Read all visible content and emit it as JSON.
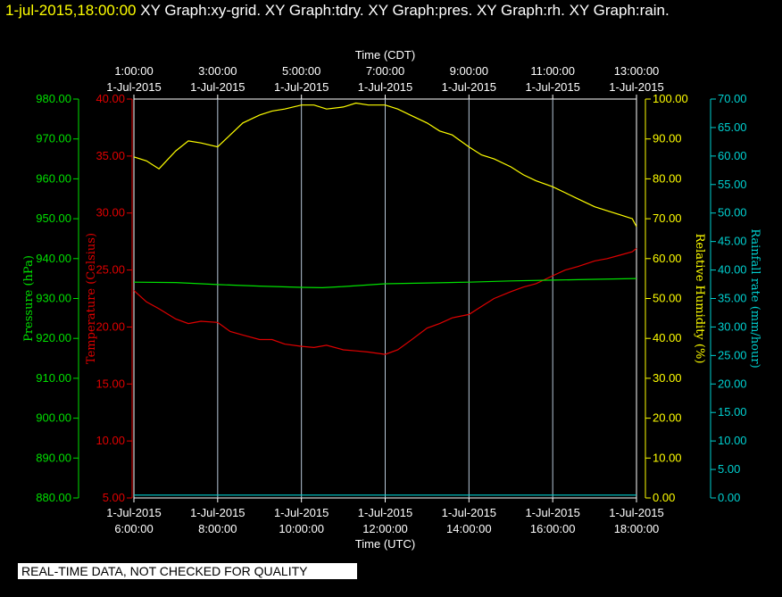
{
  "header": {
    "date_text": "1-jul-2015,18:00:00",
    "graphs_text": "XY Graph:xy-grid.  XY Graph:tdry.  XY Graph:pres.  XY Graph:rh.  XY Graph:rain."
  },
  "footer": {
    "note": "REAL-TIME DATA, NOT CHECKED FOR QUALITY"
  },
  "chart_data": {
    "type": "line",
    "x_top_label": "Time (CDT)",
    "x_bottom_label": "Time (UTC)",
    "x_top_ticks": [
      {
        "time": "1:00:00",
        "date": "1-Jul-2015"
      },
      {
        "time": "3:00:00",
        "date": "1-Jul-2015"
      },
      {
        "time": "5:00:00",
        "date": "1-Jul-2015"
      },
      {
        "time": "7:00:00",
        "date": "1-Jul-2015"
      },
      {
        "time": "9:00:00",
        "date": "1-Jul-2015"
      },
      {
        "time": "11:00:00",
        "date": "1-Jul-2015"
      },
      {
        "time": "13:00:00",
        "date": "1-Jul-2015"
      }
    ],
    "x_bottom_ticks": [
      {
        "date": "1-Jul-2015",
        "time": "6:00:00"
      },
      {
        "date": "1-Jul-2015",
        "time": "8:00:00"
      },
      {
        "date": "1-Jul-2015",
        "time": "10:00:00"
      },
      {
        "date": "1-Jul-2015",
        "time": "12:00:00"
      },
      {
        "date": "1-Jul-2015",
        "time": "14:00:00"
      },
      {
        "date": "1-Jul-2015",
        "time": "16:00:00"
      },
      {
        "date": "1-Jul-2015",
        "time": "18:00:00"
      }
    ],
    "x_range_utc_hours": [
      6,
      18
    ],
    "grid": true,
    "axes": {
      "pressure": {
        "label": "Pressure (hPa)",
        "color": "#00e000",
        "min": 880,
        "max": 980,
        "ticks": [
          "880.00",
          "890.00",
          "900.00",
          "910.00",
          "920.00",
          "930.00",
          "940.00",
          "950.00",
          "960.00",
          "970.00",
          "980.00"
        ]
      },
      "temperature": {
        "label": "Temperature (Celsius)",
        "color": "#e00000",
        "min": 5,
        "max": 40,
        "ticks": [
          "5.00",
          "10.00",
          "15.00",
          "20.00",
          "25.00",
          "30.00",
          "35.00",
          "40.00"
        ]
      },
      "rh": {
        "label": "Relative Humidity (%)",
        "color": "#ffff00",
        "min": 0,
        "max": 100,
        "ticks": [
          "0.00",
          "10.00",
          "20.00",
          "30.00",
          "40.00",
          "50.00",
          "60.00",
          "70.00",
          "80.00",
          "90.00",
          "100.00"
        ]
      },
      "rain": {
        "label": "Rainfall rate (mm/hour)",
        "color": "#00d0d0",
        "min": 0,
        "max": 70,
        "ticks": [
          "0.00",
          "5.00",
          "10.00",
          "15.00",
          "20.00",
          "25.00",
          "30.00",
          "35.00",
          "40.00",
          "45.00",
          "50.00",
          "55.00",
          "60.00",
          "65.00",
          "70.00"
        ]
      }
    },
    "series": [
      {
        "axis": "rh",
        "color": "#ffff00",
        "x": [
          6.0,
          6.3,
          6.6,
          7.0,
          7.3,
          7.6,
          8.0,
          8.3,
          8.6,
          9.0,
          9.3,
          9.6,
          10.0,
          10.3,
          10.6,
          11.0,
          11.3,
          11.6,
          12.0,
          12.3,
          12.6,
          13.0,
          13.3,
          13.6,
          14.0,
          14.3,
          14.6,
          15.0,
          15.3,
          15.6,
          16.0,
          16.3,
          16.6,
          17.0,
          17.3,
          17.6,
          17.9,
          18.0
        ],
        "y": [
          85.5,
          84.5,
          82.5,
          87,
          89.5,
          89,
          88,
          91,
          94,
          96,
          97,
          97.5,
          98.5,
          98.5,
          97.5,
          98,
          99,
          98.5,
          98.5,
          97.5,
          96,
          94,
          92,
          91,
          88,
          86,
          85,
          83,
          81,
          79.5,
          78,
          76.5,
          75,
          73,
          72,
          71,
          70,
          68
        ]
      },
      {
        "axis": "temperature",
        "color": "#e00000",
        "x": [
          6.0,
          6.3,
          6.6,
          7.0,
          7.3,
          7.6,
          8.0,
          8.3,
          8.6,
          9.0,
          9.3,
          9.6,
          10.0,
          10.3,
          10.6,
          11.0,
          11.3,
          11.6,
          12.0,
          12.3,
          12.6,
          13.0,
          13.3,
          13.6,
          14.0,
          14.3,
          14.6,
          15.0,
          15.3,
          15.6,
          16.0,
          16.3,
          16.6,
          17.0,
          17.3,
          17.6,
          17.9,
          18.0
        ],
        "y": [
          23.2,
          22.2,
          21.6,
          20.7,
          20.3,
          20.5,
          20.4,
          19.6,
          19.3,
          18.9,
          18.9,
          18.5,
          18.3,
          18.2,
          18.4,
          18.0,
          17.9,
          17.8,
          17.6,
          18.0,
          18.8,
          19.9,
          20.3,
          20.8,
          21.1,
          21.8,
          22.5,
          23.1,
          23.5,
          23.8,
          24.5,
          25.0,
          25.3,
          25.8,
          26.0,
          26.3,
          26.6,
          26.9
        ]
      },
      {
        "axis": "pressure",
        "color": "#00e000",
        "x": [
          6.0,
          7.0,
          8.0,
          9.0,
          10.0,
          10.5,
          11.0,
          12.0,
          13.0,
          14.0,
          15.0,
          16.0,
          17.0,
          18.0
        ],
        "y": [
          934.1,
          934.0,
          933.5,
          933.1,
          932.8,
          932.7,
          933.0,
          933.7,
          933.9,
          934.1,
          934.4,
          934.6,
          934.8,
          935.0
        ]
      },
      {
        "axis": "rain",
        "color": "#00d0d0",
        "x": [
          6.0,
          18.0
        ],
        "y": [
          0.5,
          0.5
        ]
      }
    ]
  }
}
